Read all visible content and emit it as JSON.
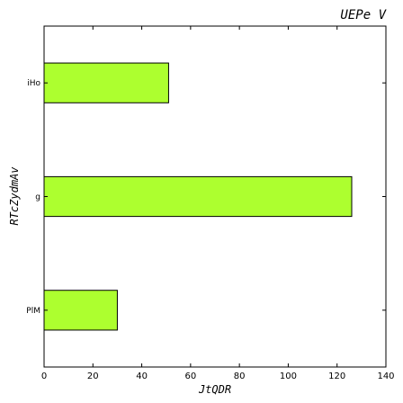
{
  "chart_data": {
    "type": "bar",
    "orientation": "horizontal",
    "title": "UEPe  V",
    "xlabel": "JtQDR",
    "ylabel": "RTcZydmAv",
    "categories": [
      "PlM",
      "g",
      "iHo"
    ],
    "values": [
      30,
      126,
      51
    ],
    "xlim": [
      0,
      140
    ],
    "xticks": [
      "0",
      "20",
      "40",
      "60",
      "80",
      "100",
      "120",
      "140"
    ],
    "bar_color": "#adff2f",
    "grid": false
  }
}
